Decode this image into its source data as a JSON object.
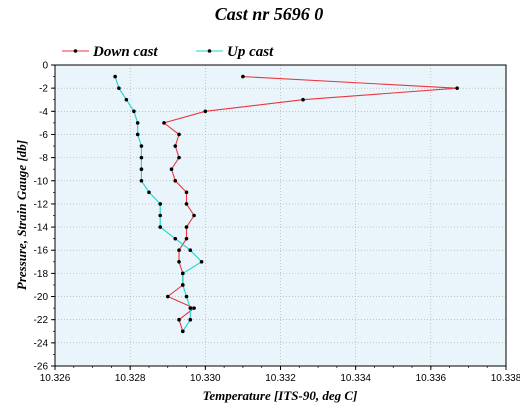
{
  "chart_data": {
    "type": "line",
    "title": "Cast nr 5696 0",
    "xlabel": "Temperature [ITS-90, deg C]",
    "ylabel": "Pressure, Strain Gauge [db]",
    "xlim": [
      10.326,
      10.338
    ],
    "ylim": [
      -26,
      0
    ],
    "xticks": [
      "10.326",
      "10.328",
      "10.330",
      "10.332",
      "10.334",
      "10.336",
      "10.338"
    ],
    "yticks": [
      "0",
      "-2",
      "-4",
      "-6",
      "-8",
      "-10",
      "-12",
      "-14",
      "-16",
      "-18",
      "-20",
      "-22",
      "-24",
      "-26"
    ],
    "grid": true,
    "legend_position": "top-left",
    "background": "#eaf4fb",
    "series": [
      {
        "name": "Down cast",
        "color": "#e8383f",
        "x": [
          10.331,
          10.3367,
          10.3326,
          10.33,
          10.3289,
          10.3293,
          10.3292,
          10.3293,
          10.3291,
          10.3292,
          10.3295,
          10.3295,
          10.3297,
          10.3295,
          10.3295,
          10.3293,
          10.3293,
          10.3294,
          10.3294,
          10.329,
          10.3297,
          10.3293,
          10.3294
        ],
        "y": [
          -1,
          -2,
          -3,
          -4,
          -5,
          -6,
          -7,
          -8,
          -9,
          -10,
          -11,
          -12,
          -13,
          -14,
          -15,
          -16,
          -17,
          -18,
          -19,
          -20,
          -21,
          -22,
          -23
        ]
      },
      {
        "name": "Up cast",
        "color": "#1ed4cc",
        "x": [
          10.3276,
          10.3277,
          10.3279,
          10.3281,
          10.3282,
          10.3282,
          10.3283,
          10.3283,
          10.3283,
          10.3283,
          10.3285,
          10.3288,
          10.3288,
          10.3288,
          10.3292,
          10.3296,
          10.3299,
          10.3294,
          10.3294,
          10.3295,
          10.3296,
          10.3296,
          10.3294
        ],
        "y": [
          -1,
          -2,
          -3,
          -4,
          -5,
          -6,
          -7,
          -8,
          -9,
          -10,
          -11,
          -12,
          -13,
          -14,
          -15,
          -16,
          -17,
          -18,
          -19,
          -20,
          -21,
          -22,
          -23
        ]
      }
    ]
  }
}
